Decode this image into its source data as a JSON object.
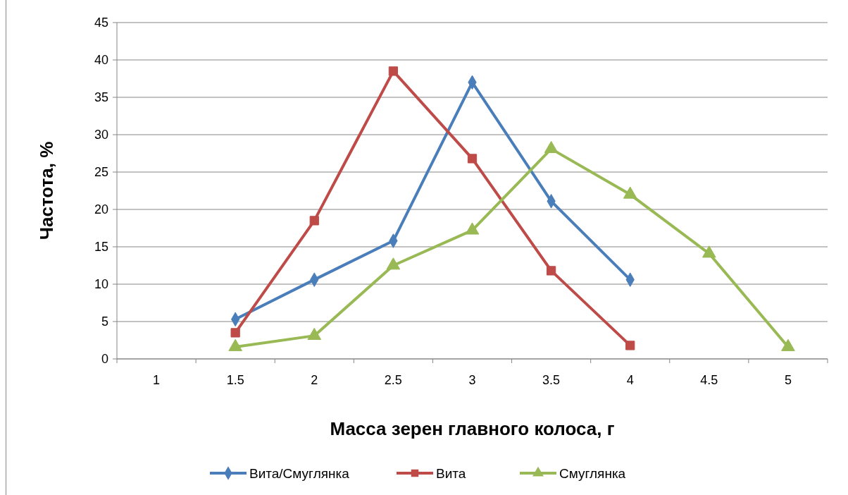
{
  "chart_data": {
    "type": "line",
    "xlabel": "Масса зерен главного колоса, г",
    "ylabel": "Частота, %",
    "categories": [
      "1",
      "1.5",
      "2",
      "2.5",
      "3",
      "3.5",
      "4",
      "4.5",
      "5"
    ],
    "ylim": [
      0,
      45
    ],
    "yticks": [
      0,
      5,
      10,
      15,
      20,
      25,
      30,
      35,
      40,
      45
    ],
    "grid": "y",
    "legend": "bottom",
    "series": [
      {
        "name": "Вита/Смуглянка",
        "color": "#4a7ebb",
        "marker": "diamond",
        "values": [
          null,
          5.3,
          10.6,
          15.8,
          37.0,
          21.1,
          10.6,
          null,
          null
        ]
      },
      {
        "name": "Вита",
        "color": "#be4b48",
        "marker": "square",
        "values": [
          null,
          3.5,
          18.5,
          38.5,
          26.8,
          11.8,
          1.8,
          null,
          null
        ]
      },
      {
        "name": "Смуглянка",
        "color": "#98b954",
        "marker": "triangle",
        "values": [
          null,
          1.6,
          3.1,
          12.5,
          17.2,
          28.1,
          22.0,
          14.1,
          1.6
        ]
      }
    ]
  }
}
